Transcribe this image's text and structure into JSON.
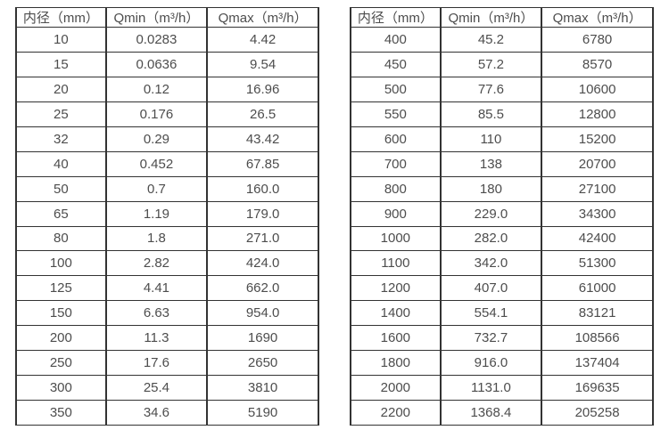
{
  "page": {
    "background_color": "#ffffff",
    "border_color": "#333333",
    "text_color": "#4d4d4d"
  },
  "tables": [
    {
      "name": "flow-table-small-diameters",
      "headers": [
        "内径（mm）",
        "Qmin（m³/h）",
        "Qmax（m³/h）"
      ],
      "rows": [
        [
          "10",
          "0.0283",
          "4.42"
        ],
        [
          "15",
          "0.0636",
          "9.54"
        ],
        [
          "20",
          "0.12",
          "16.96"
        ],
        [
          "25",
          "0.176",
          "26.5"
        ],
        [
          "32",
          "0.29",
          "43.42"
        ],
        [
          "40",
          "0.452",
          "67.85"
        ],
        [
          "50",
          "0.7",
          "160.0"
        ],
        [
          "65",
          "1.19",
          "179.0"
        ],
        [
          "80",
          "1.8",
          "271.0"
        ],
        [
          "100",
          "2.82",
          "424.0"
        ],
        [
          "125",
          "4.41",
          "662.0"
        ],
        [
          "150",
          "6.63",
          "954.0"
        ],
        [
          "200",
          "11.3",
          "1690"
        ],
        [
          "250",
          "17.6",
          "2650"
        ],
        [
          "300",
          "25.4",
          "3810"
        ],
        [
          "350",
          "34.6",
          "5190"
        ]
      ]
    },
    {
      "name": "flow-table-large-diameters",
      "headers": [
        "内径（mm）",
        "Qmin（m³/h）",
        "Qmax（m³/h）"
      ],
      "rows": [
        [
          "400",
          "45.2",
          "6780"
        ],
        [
          "450",
          "57.2",
          "8570"
        ],
        [
          "500",
          "77.6",
          "10600"
        ],
        [
          "550",
          "85.5",
          "12800"
        ],
        [
          "600",
          "110",
          "15200"
        ],
        [
          "700",
          "138",
          "20700"
        ],
        [
          "800",
          "180",
          "27100"
        ],
        [
          "900",
          "229.0",
          "34300"
        ],
        [
          "1000",
          "282.0",
          "42400"
        ],
        [
          "1100",
          "342.0",
          "51300"
        ],
        [
          "1200",
          "407.0",
          "61000"
        ],
        [
          "1400",
          "554.1",
          "83121"
        ],
        [
          "1600",
          "732.7",
          "108566"
        ],
        [
          "1800",
          "916.0",
          "137404"
        ],
        [
          "2000",
          "1131.0",
          "169635"
        ],
        [
          "2200",
          "1368.4",
          "205258"
        ]
      ]
    }
  ]
}
